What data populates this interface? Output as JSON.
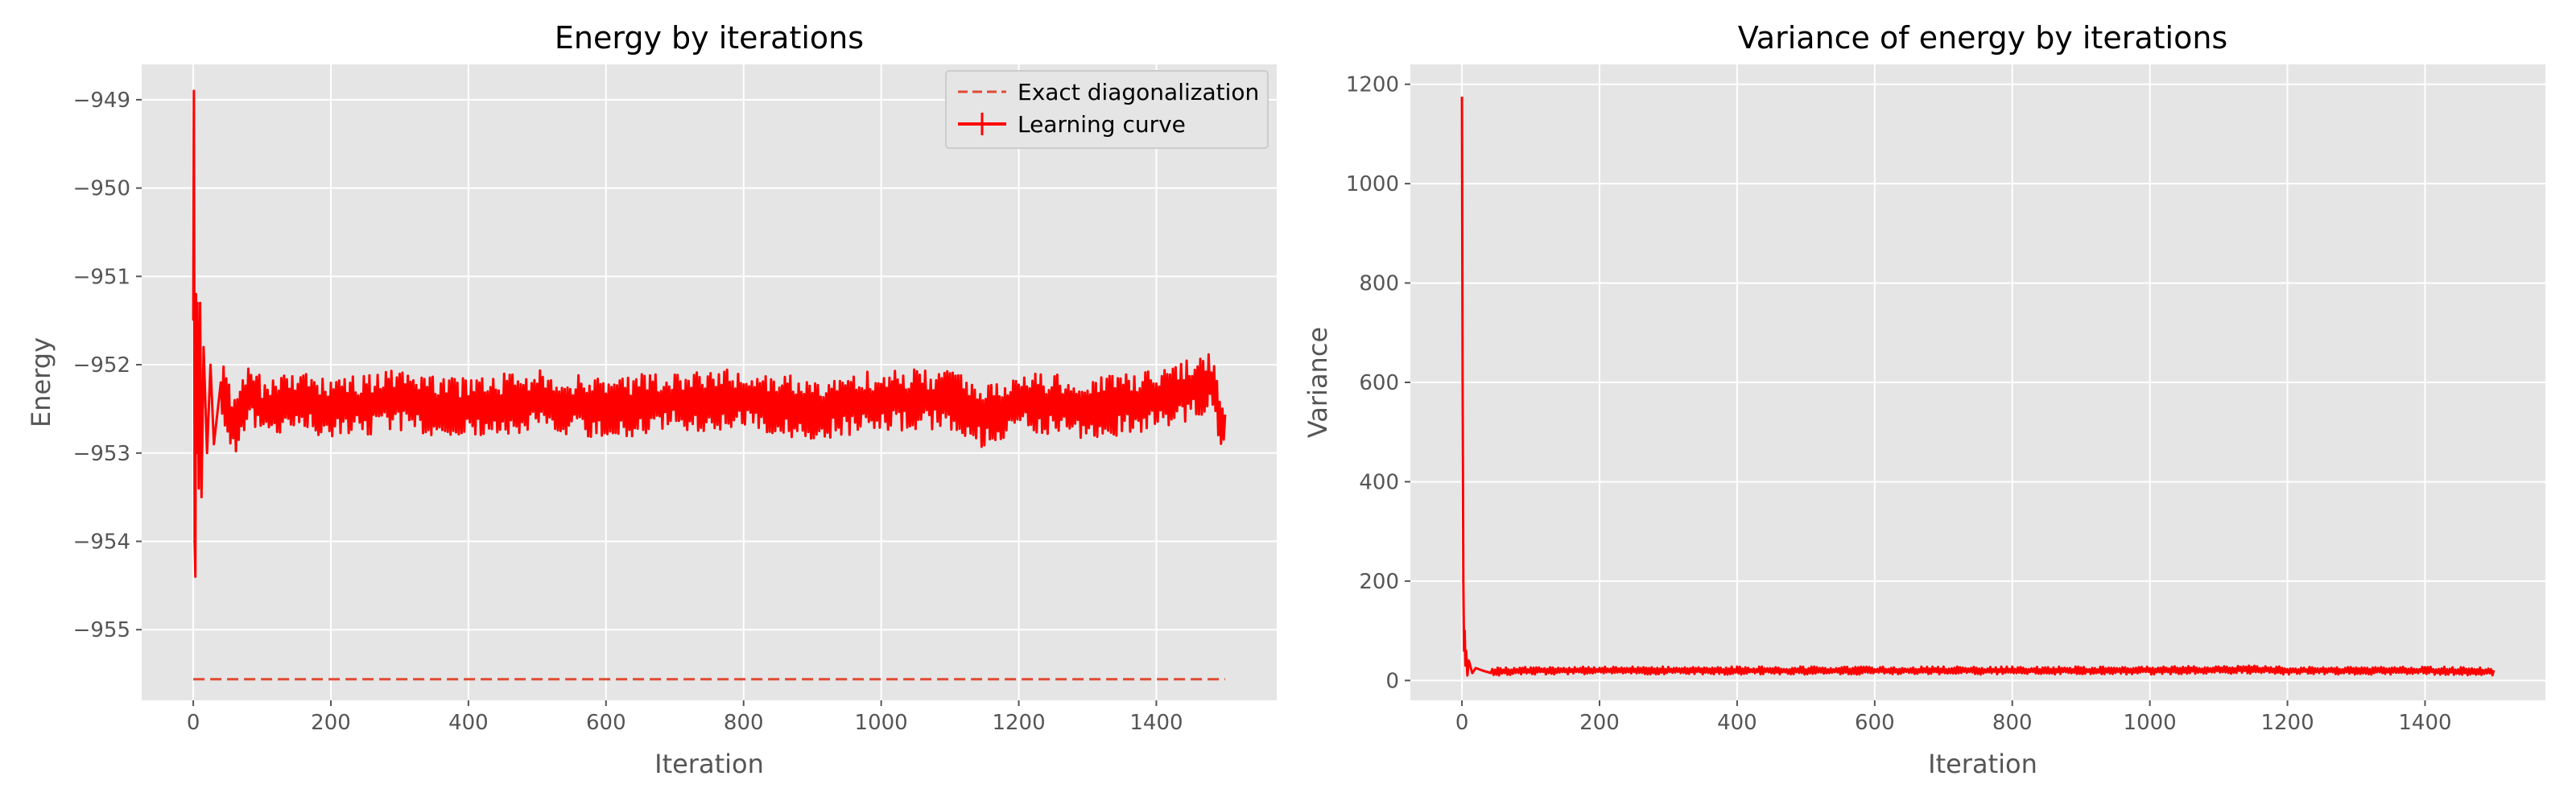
{
  "chart_data": [
    {
      "type": "line",
      "title": "Energy by iterations",
      "xlabel": "Iteration",
      "ylabel": "Energy",
      "xlim": [
        -75,
        1575
      ],
      "ylim": [
        -955.8,
        -948.6
      ],
      "xticks": [
        0,
        200,
        400,
        600,
        800,
        1000,
        1200,
        1400
      ],
      "xtick_labels": [
        "0",
        "200",
        "400",
        "600",
        "800",
        "1000",
        "1200",
        "1400"
      ],
      "yticks": [
        -955,
        -954,
        -953,
        -952,
        -951,
        -950,
        -949
      ],
      "ytick_labels": [
        "−955",
        "−954",
        "−953",
        "−952",
        "−951",
        "−950",
        "−949"
      ],
      "grid": true,
      "legend": "top-right",
      "series": [
        {
          "name": "Exact diagonalization",
          "style": "dashed",
          "color": "#e24a33",
          "x": [
            0,
            1500
          ],
          "y": [
            -955.56,
            -955.56
          ]
        },
        {
          "name": "Learning curve",
          "style": "solid",
          "color": "#ff0000",
          "x": [
            0,
            1,
            2,
            3,
            4,
            5,
            6,
            8,
            10,
            12,
            15,
            20,
            25,
            30,
            40,
            60,
            80,
            100,
            150,
            200,
            300,
            400,
            500,
            600,
            700,
            800,
            900,
            1000,
            1100,
            1150,
            1200,
            1300,
            1400,
            1480,
            1500
          ],
          "y": [
            -951.5,
            -948.9,
            -954.0,
            -954.4,
            -951.2,
            -953.0,
            -951.3,
            -953.4,
            -951.3,
            -953.5,
            -951.8,
            -953.0,
            -952.0,
            -952.9,
            -952.2,
            -952.7,
            -952.3,
            -952.5,
            -952.4,
            -952.5,
            -952.4,
            -952.5,
            -952.4,
            -952.5,
            -952.4,
            -952.4,
            -952.5,
            -952.4,
            -952.4,
            -952.6,
            -952.4,
            -952.5,
            -952.4,
            -952.2,
            -952.8
          ],
          "oscillation_amplitude": 0.35
        }
      ]
    },
    {
      "type": "line",
      "title": "Variance of energy by iterations",
      "xlabel": "Iteration",
      "ylabel": "Variance",
      "xlim": [
        -75,
        1575
      ],
      "ylim": [
        -40,
        1240
      ],
      "xticks": [
        0,
        200,
        400,
        600,
        800,
        1000,
        1200,
        1400
      ],
      "xtick_labels": [
        "0",
        "200",
        "400",
        "600",
        "800",
        "1000",
        "1200",
        "1400"
      ],
      "yticks": [
        0,
        200,
        400,
        600,
        800,
        1000,
        1200
      ],
      "ytick_labels": [
        "0",
        "200",
        "400",
        "600",
        "800",
        "1000",
        "1200"
      ],
      "grid": true,
      "series": [
        {
          "style": "solid",
          "color": "#ff0000",
          "x": [
            0,
            1,
            2,
            3,
            4,
            5,
            6,
            8,
            10,
            15,
            20,
            30,
            50,
            100,
            200,
            400,
            600,
            800,
            1000,
            1150,
            1200,
            1400,
            1500
          ],
          "y": [
            1175,
            600,
            200,
            60,
            100,
            30,
            60,
            10,
            40,
            15,
            25,
            20,
            18,
            20,
            20,
            20,
            20,
            20,
            20,
            22,
            20,
            20,
            18
          ],
          "oscillation_amplitude": 8
        }
      ]
    }
  ]
}
